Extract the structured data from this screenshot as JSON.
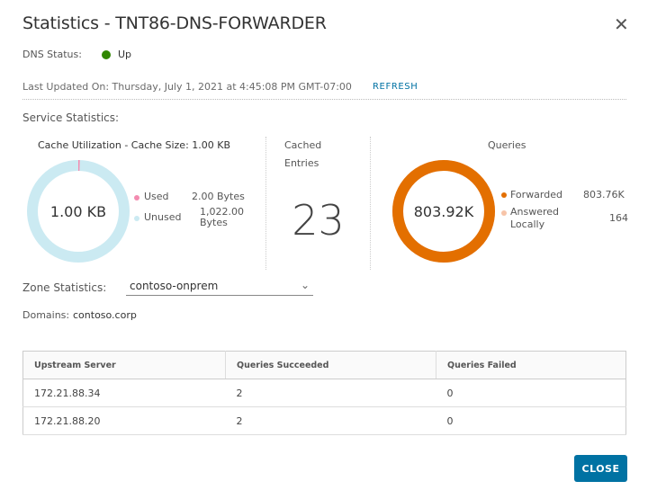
{
  "title": "Statistics - TNT86-DNS-FORWARDER",
  "dns_status": {
    "label": "DNS Status:",
    "value": "Up",
    "color": "#318700"
  },
  "last_updated": {
    "text": "Last Updated On: Thursday, July 1, 2021 at 4:45:08 PM GMT-07:00",
    "refresh": "REFRESH"
  },
  "service_statistics": "Service Statistics:",
  "cache": {
    "title": "Cache Utilization - Cache Size: 1.00 KB",
    "center": "1.00 KB",
    "legend": [
      {
        "label": "Used",
        "value": "2.00 Bytes",
        "bytes": 2,
        "color": "#f38bb0"
      },
      {
        "label": "Unused",
        "value": "1,022.00 Bytes",
        "bytes": 1022,
        "color": "#cbeaf2"
      }
    ]
  },
  "cached_entries": {
    "label_line1": "Cached",
    "label_line2": "Entries",
    "value": "23"
  },
  "queries": {
    "title": "Queries",
    "center": "803.92K",
    "legend": [
      {
        "label": "Forwarded",
        "value": "803.76K",
        "color": "#e36f00"
      },
      {
        "label": "Answered Locally",
        "value": "164",
        "color": "#f7c4a8"
      }
    ]
  },
  "zone": {
    "label": "Zone Statistics:",
    "selected": "contoso-onprem"
  },
  "domains": {
    "label": "Domains:",
    "value": "contoso.corp"
  },
  "table": {
    "headers": [
      "Upstream Server",
      "Queries Succeeded",
      "Queries Failed"
    ],
    "rows": [
      [
        "172.21.88.34",
        "2",
        "0"
      ],
      [
        "172.21.88.20",
        "2",
        "0"
      ]
    ]
  },
  "close_label": "CLOSE"
}
